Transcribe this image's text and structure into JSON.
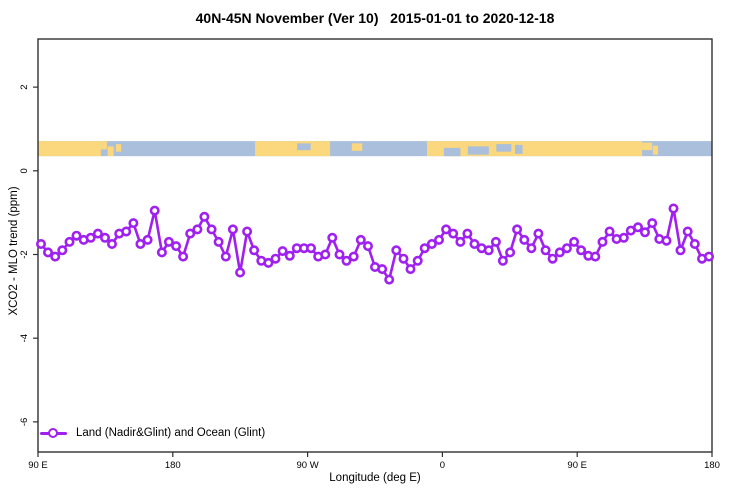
{
  "figure": {
    "title": "40N-45N November (Ver 10)   2015-01-01 to 2020-12-18"
  },
  "chart_data": {
    "type": "line",
    "title": "40N-45N November (Ver 10)   2015-01-01 to 2020-12-18",
    "xlabel": "Longitude (deg E)",
    "ylabel": "XCO2 - MLO trend (ppm)",
    "xlim": [
      90,
      540
    ],
    "ylim": [
      -6.72,
      3.15
    ],
    "grid": false,
    "x_ticks": [
      {
        "lon": 90,
        "label": "90 E"
      },
      {
        "lon": 180,
        "label": "180"
      },
      {
        "lon": 270,
        "label": "90 W"
      },
      {
        "lon": 360,
        "label": "0"
      },
      {
        "lon": 450,
        "label": "90 E"
      },
      {
        "lon": 540,
        "label": "180"
      }
    ],
    "y_ticks": [
      {
        "value": 2,
        "label": "2"
      },
      {
        "value": 0,
        "label": "0"
      },
      {
        "value": -2,
        "label": "-2"
      },
      {
        "value": -4,
        "label": "-4"
      },
      {
        "value": -6,
        "label": "-6"
      }
    ],
    "legend": {
      "position": "bottom-left",
      "label": "Land (Nadir&Glint) and Ocean (Glint)"
    },
    "series": [
      {
        "name": "Land (Nadir&Glint) and Ocean (Glint)",
        "color": "#A020F0",
        "marker": "open-circle",
        "x": [
          92.0,
          96.7,
          101.5,
          106.2,
          111.0,
          115.7,
          120.5,
          125.2,
          130.0,
          134.7,
          139.4,
          144.2,
          148.9,
          153.7,
          158.4,
          163.2,
          167.9,
          172.7,
          177.4,
          182.2,
          186.9,
          191.6,
          196.4,
          201.1,
          205.9,
          210.6,
          215.4,
          220.1,
          224.9,
          229.6,
          234.3,
          239.1,
          243.8,
          248.6,
          253.3,
          258.1,
          262.8,
          267.6,
          272.3,
          277.1,
          281.8,
          286.5,
          291.3,
          296.0,
          300.8,
          305.5,
          310.3,
          315.0,
          319.8,
          324.5,
          329.2,
          334.0,
          338.7,
          343.5,
          348.2,
          353.0,
          357.7,
          362.5,
          367.2,
          372.0,
          376.7,
          381.4,
          386.2,
          390.9,
          395.7,
          400.4,
          405.2,
          409.9,
          414.7,
          419.4,
          424.1,
          428.9,
          433.6,
          438.4,
          443.1,
          447.9,
          452.6,
          457.4,
          462.1,
          466.9,
          471.6,
          476.3,
          481.1,
          485.8,
          490.6,
          495.3,
          500.1,
          504.8,
          509.6,
          514.3,
          519.0,
          523.8,
          528.5,
          533.3,
          538.0
        ],
        "values": [
          -1.75,
          -1.95,
          -2.05,
          -1.9,
          -1.7,
          -1.55,
          -1.65,
          -1.6,
          -1.5,
          -1.6,
          -1.75,
          -1.5,
          -1.45,
          -1.25,
          -1.75,
          -1.65,
          -0.95,
          -1.95,
          -1.7,
          -1.8,
          -2.05,
          -1.5,
          -1.4,
          -1.1,
          -1.4,
          -1.7,
          -2.05,
          -1.4,
          -2.43,
          -1.45,
          -1.9,
          -2.15,
          -2.2,
          -2.1,
          -1.92,
          -2.03,
          -1.85,
          -1.85,
          -1.85,
          -2.05,
          -2.0,
          -1.6,
          -2.0,
          -2.15,
          -2.05,
          -1.65,
          -1.8,
          -2.3,
          -2.35,
          -2.6,
          -1.9,
          -2.1,
          -2.35,
          -2.15,
          -1.85,
          -1.75,
          -1.65,
          -1.4,
          -1.5,
          -1.7,
          -1.5,
          -1.75,
          -1.85,
          -1.9,
          -1.7,
          -2.15,
          -1.95,
          -1.4,
          -1.65,
          -1.85,
          -1.5,
          -1.9,
          -2.1,
          -1.95,
          -1.85,
          -1.7,
          -1.9,
          -2.03,
          -2.05,
          -1.7,
          -1.45,
          -1.63,
          -1.6,
          -1.43,
          -1.35,
          -1.47,
          -1.25,
          -1.63,
          -1.67,
          -0.9,
          -1.9,
          -1.45,
          -1.75,
          -2.1,
          -2.05
        ]
      }
    ],
    "surface_band": {
      "description": "land-ocean map strip",
      "y_range": [
        0.35,
        0.71
      ],
      "ocean_color": "#A9BFDB",
      "land_color": "#FBD77E",
      "land_segments": [
        {
          "from": 90,
          "to": 132
        },
        {
          "from": 132,
          "to": 136,
          "top": 0.0,
          "h": 0.55
        },
        {
          "from": 136.5,
          "to": 140.5,
          "top": 0.35,
          "h": 0.65
        },
        {
          "from": 142,
          "to": 145.5,
          "top": 0.2,
          "h": 0.5
        },
        {
          "from": 234.9,
          "to": 285
        },
        {
          "from": 299.5,
          "to": 306.5,
          "top": 0.15,
          "h": 0.5
        },
        {
          "from": 349.7,
          "to": 493.3
        },
        {
          "from": 493.3,
          "to": 500,
          "top": 0.1,
          "h": 0.5
        },
        {
          "from": 500.5,
          "to": 504,
          "top": 0.3,
          "h": 0.6
        }
      ],
      "water_patches": [
        {
          "from": 263,
          "to": 272,
          "top": 0.15,
          "h": 0.45
        },
        {
          "from": 361,
          "to": 372,
          "top": 0.45,
          "h": 0.55
        },
        {
          "from": 377,
          "to": 391,
          "top": 0.35,
          "h": 0.55
        },
        {
          "from": 396,
          "to": 406,
          "top": 0.2,
          "h": 0.5
        },
        {
          "from": 408.5,
          "to": 413.5,
          "top": 0.25,
          "h": 0.6
        }
      ]
    },
    "frame_color": "#303030"
  }
}
